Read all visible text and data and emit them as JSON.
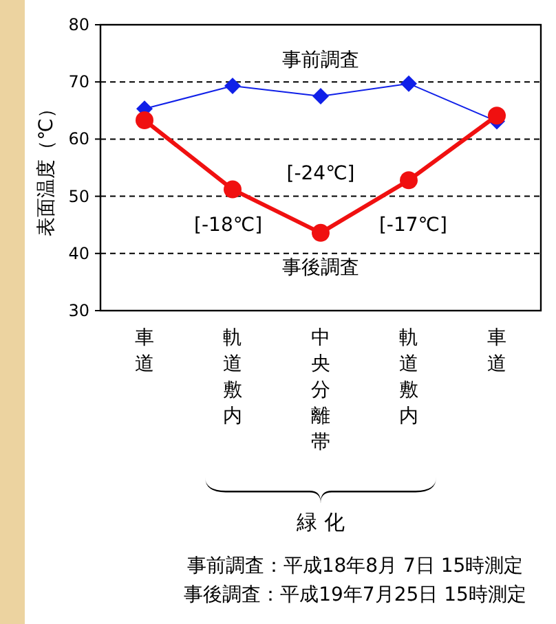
{
  "chart_data": {
    "type": "line",
    "ylabel": "表面温度（℃）",
    "categories": [
      "車道",
      "軌道敷内",
      "中央分離帯",
      "軌道敷内",
      "車道"
    ],
    "series": [
      {
        "name": "事前調査",
        "color": "#1020e8",
        "values": [
          65.3,
          69.3,
          67.5,
          69.7,
          63.1
        ],
        "marker": "diamond"
      },
      {
        "name": "事後調査",
        "color": "#f01010",
        "values": [
          63.3,
          51.2,
          43.6,
          52.8,
          64.1
        ],
        "marker": "circle"
      }
    ],
    "ylim": [
      30,
      80
    ],
    "yticks": [
      30,
      40,
      50,
      60,
      70,
      80
    ],
    "grid": "y",
    "annotations": [
      "[-18℃]",
      "[-24℃]",
      "[-17℃]",
      "緑 化",
      "事前調査：平成18年8月 7日 15時測定",
      "事後調査：平成19年7月25日 15時測定"
    ]
  }
}
